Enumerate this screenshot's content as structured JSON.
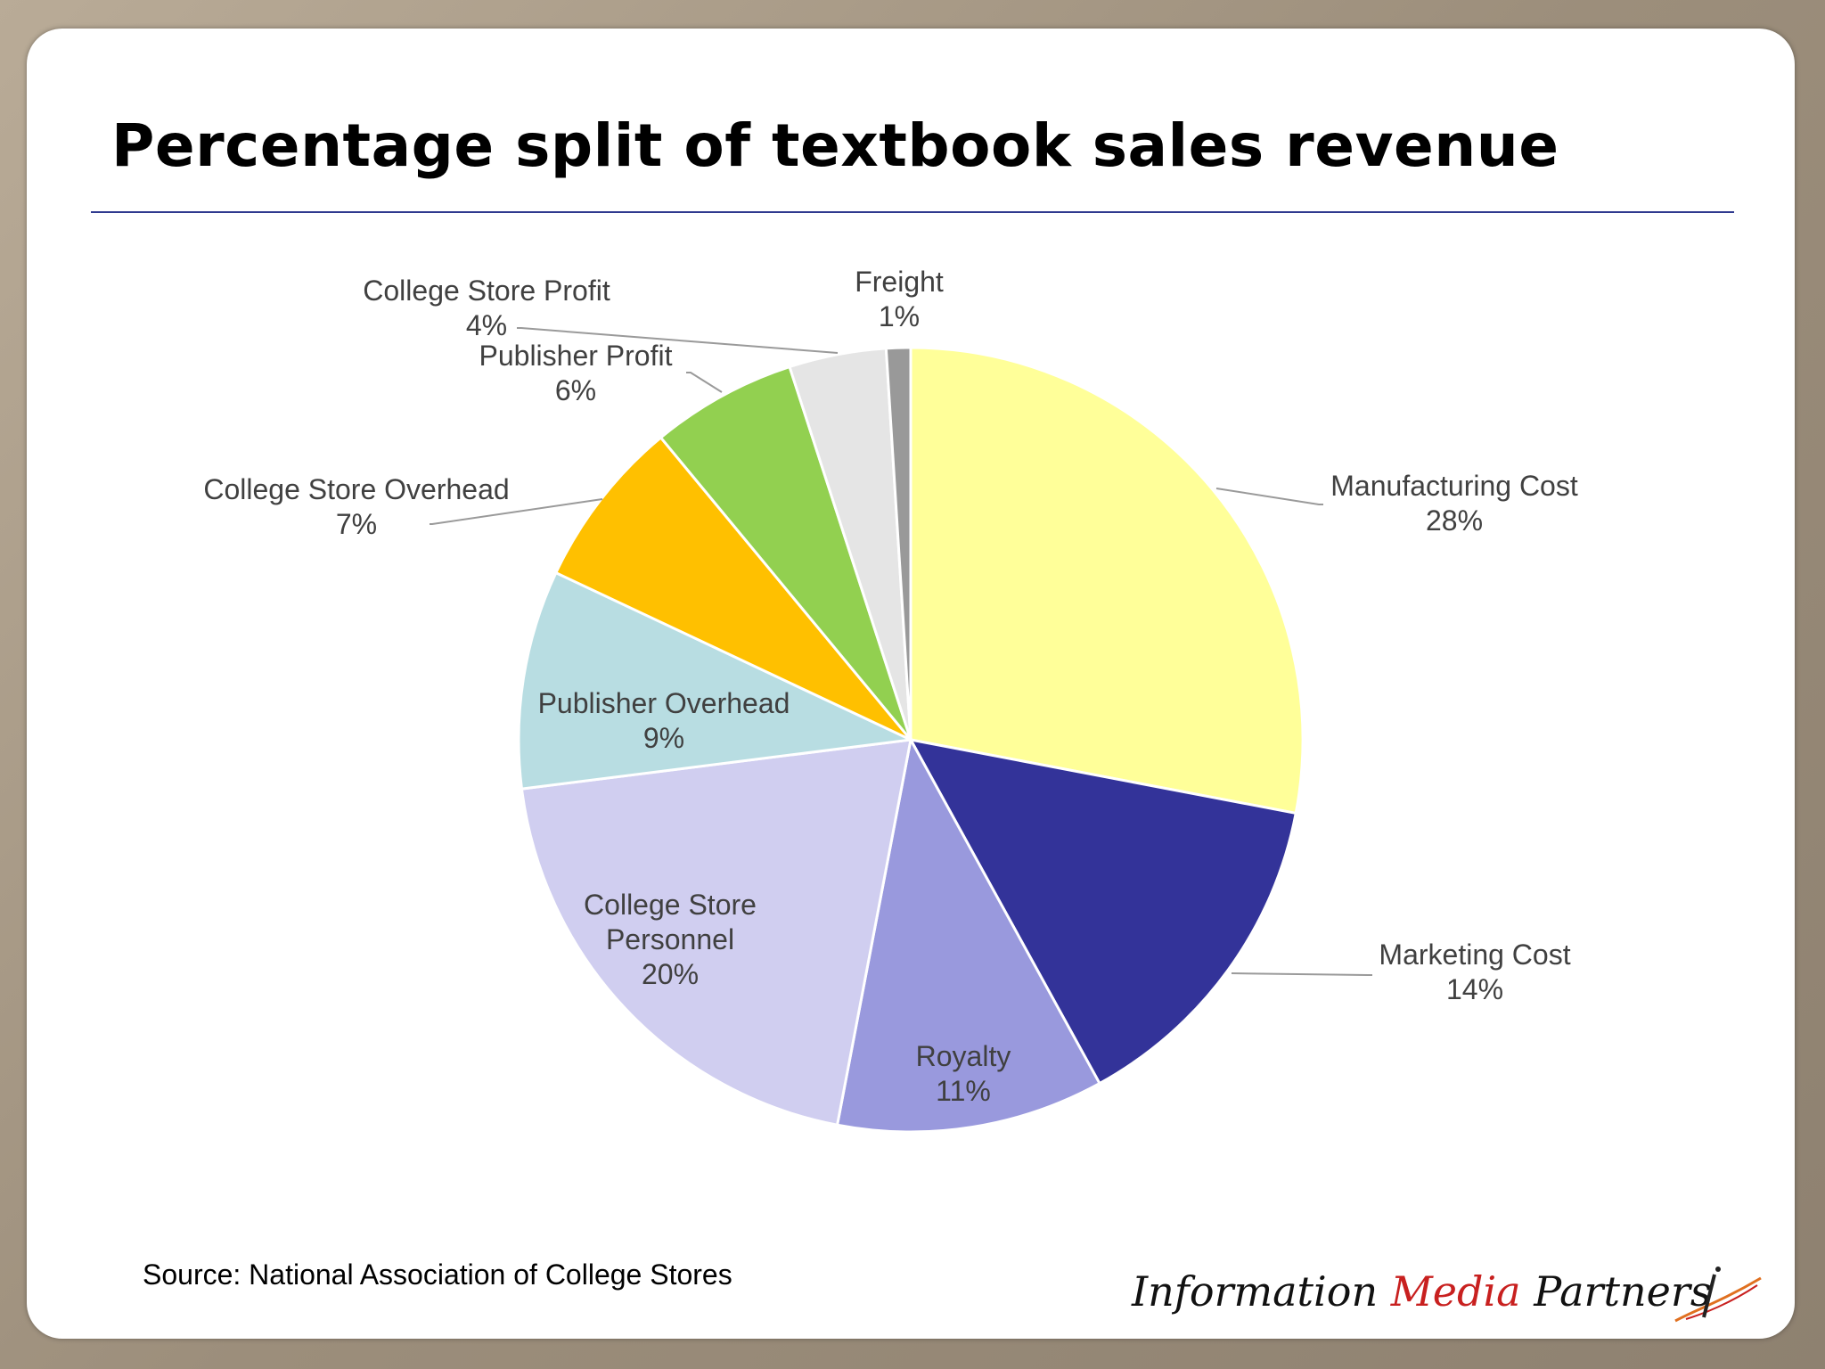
{
  "slide": {
    "title": "Percentage split of textbook sales revenue",
    "source": "Source: National Association of College Stores",
    "brand": {
      "part1": "Information ",
      "part2": "Media",
      "part3": " Partners"
    }
  },
  "chart_data": {
    "type": "pie",
    "title": "",
    "start_angle_deg": 0,
    "direction": "clockwise",
    "slices": [
      {
        "label": "Manufacturing Cost",
        "value": 28,
        "value_label": "28%",
        "color": "#ffff99",
        "label_position": "outside"
      },
      {
        "label": "Marketing Cost",
        "value": 14,
        "value_label": "14%",
        "color": "#333399",
        "label_position": "outside"
      },
      {
        "label": "Royalty",
        "value": 11,
        "value_label": "11%",
        "color": "#9999dd",
        "label_position": "inside"
      },
      {
        "label": "College Store Personnel",
        "value": 20,
        "value_label": "20%",
        "color": "#d0cef0",
        "label_position": "inside",
        "label_lines": [
          "College Store",
          "Personnel"
        ]
      },
      {
        "label": "Publisher Overhead",
        "value": 9,
        "value_label": "9%",
        "color": "#b8dde2",
        "label_position": "inside"
      },
      {
        "label": "College Store Overhead",
        "value": 7,
        "value_label": "7%",
        "color": "#ffc000",
        "label_position": "outside"
      },
      {
        "label": "Publisher Profit",
        "value": 6,
        "value_label": "6%",
        "color": "#92d050",
        "label_position": "outside"
      },
      {
        "label": "College Store Profit",
        "value": 4,
        "value_label": "4%",
        "color": "#e5e5e5",
        "label_position": "outside"
      },
      {
        "label": "Freight",
        "value": 1,
        "value_label": "1%",
        "color": "#999999",
        "label_position": "outside"
      }
    ]
  }
}
